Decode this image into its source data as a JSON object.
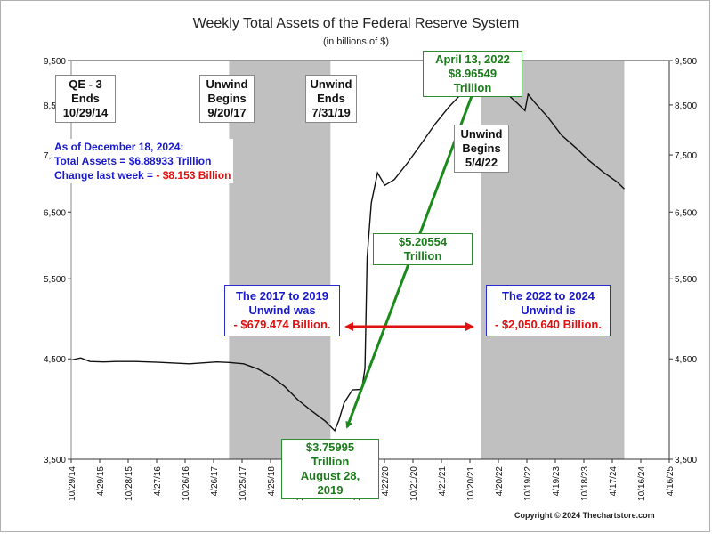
{
  "chart_data": {
    "type": "line",
    "title": "Weekly Total Assets of the Federal Reserve System",
    "subtitle": "(in billions of $)",
    "y_scale": "log",
    "ylim": [
      3500,
      9500
    ],
    "y_ticks": [
      3500,
      4500,
      5500,
      6500,
      7500,
      8500,
      9500
    ],
    "y_tick_labels": [
      "3,500",
      "4,500",
      "5,500",
      "6,500",
      "7,500",
      "8,500",
      "9,500"
    ],
    "x_range": [
      "2014-10-29",
      "2025-10-15"
    ],
    "x_tick_labels": [
      "10/29/14",
      "4/29/15",
      "10/28/15",
      "4/27/16",
      "10/26/16",
      "4/26/17",
      "10/25/17",
      "4/25/18",
      "10/24/18",
      "4/24/19",
      "10/23/19",
      "4/22/20",
      "10/21/20",
      "4/21/21",
      "10/20/21",
      "4/20/22",
      "10/19/22",
      "4/19/23",
      "10/18/23",
      "4/17/24",
      "10/16/24",
      "4/16/25"
    ],
    "grid": false,
    "line_color": "#111111",
    "shaded_periods": [
      {
        "start": "2017-09-20",
        "end": "2019-07-31"
      },
      {
        "start": "2022-05-04",
        "end": "2024-12-18"
      }
    ],
    "shade_color": "#c0c0c0",
    "series": [
      {
        "points": [
          [
            "2014-10-29",
            4487
          ],
          [
            "2014-12-31",
            4510
          ],
          [
            "2015-03-04",
            4470
          ],
          [
            "2015-06-03",
            4465
          ],
          [
            "2015-09-02",
            4470
          ],
          [
            "2015-12-30",
            4470
          ],
          [
            "2016-06-01",
            4462
          ],
          [
            "2016-12-28",
            4445
          ],
          [
            "2017-06-28",
            4465
          ],
          [
            "2017-09-20",
            4460
          ],
          [
            "2017-12-27",
            4445
          ],
          [
            "2018-03-28",
            4390
          ],
          [
            "2018-06-27",
            4310
          ],
          [
            "2018-09-26",
            4200
          ],
          [
            "2018-12-26",
            4060
          ],
          [
            "2019-03-27",
            3950
          ],
          [
            "2019-06-26",
            3850
          ],
          [
            "2019-07-31",
            3800
          ],
          [
            "2019-08-28",
            3760
          ],
          [
            "2019-09-25",
            3860
          ],
          [
            "2019-10-30",
            4030
          ],
          [
            "2019-12-25",
            4165
          ],
          [
            "2020-02-26",
            4170
          ],
          [
            "2020-03-18",
            4400
          ],
          [
            "2020-04-01",
            5800
          ],
          [
            "2020-04-29",
            6650
          ],
          [
            "2020-06-10",
            7170
          ],
          [
            "2020-07-29",
            6950
          ],
          [
            "2020-09-30",
            7050
          ],
          [
            "2020-12-30",
            7360
          ],
          [
            "2021-03-31",
            7720
          ],
          [
            "2021-06-30",
            8100
          ],
          [
            "2021-09-29",
            8450
          ],
          [
            "2021-12-29",
            8760
          ],
          [
            "2022-03-02",
            8900
          ],
          [
            "2022-04-13",
            8965
          ],
          [
            "2022-06-29",
            8930
          ],
          [
            "2022-09-28",
            8820
          ],
          [
            "2022-12-28",
            8550
          ],
          [
            "2023-02-22",
            8380
          ],
          [
            "2023-03-15",
            8730
          ],
          [
            "2023-04-26",
            8560
          ],
          [
            "2023-07-26",
            8240
          ],
          [
            "2023-10-25",
            7880
          ],
          [
            "2024-01-31",
            7630
          ],
          [
            "2024-04-24",
            7400
          ],
          [
            "2024-07-31",
            7180
          ],
          [
            "2024-10-30",
            7010
          ],
          [
            "2024-12-18",
            6889
          ]
        ]
      }
    ],
    "annotations": {
      "qe3": {
        "lines": [
          "QE - 3",
          "Ends",
          "10/29/14"
        ]
      },
      "unwind1_begins": {
        "lines": [
          "Unwind",
          "Begins",
          "9/20/17"
        ]
      },
      "unwind1_ends": {
        "lines": [
          "Unwind",
          "Ends",
          "7/31/19"
        ]
      },
      "unwind2_begins": {
        "lines": [
          "Unwind",
          "Begins",
          "5/4/22"
        ]
      },
      "peak": {
        "date": "2022-04-13",
        "value": 8965.49,
        "lines": [
          "April 13, 2022",
          "$8.96549 Trillion"
        ]
      },
      "trough": {
        "date": "2019-08-28",
        "value": 3759.95,
        "lines": [
          "$3.75995 Trillion",
          "August 28, 2019"
        ]
      },
      "increase": {
        "label": "$5.20554 Trillion",
        "value": 5205.54
      },
      "unwind1_amount": {
        "lines": [
          "The 2017 to 2019",
          "Unwind was"
        ],
        "amount": "- $679.474 Billion."
      },
      "unwind2_amount": {
        "lines": [
          "The 2022 to 2024",
          "Unwind is"
        ],
        "amount": "- $2,050.640 Billion."
      },
      "status": {
        "as_of": "As of December 18, 2024:",
        "total_label": "Total Assets = ",
        "total_value": "$6.88933 Trillion",
        "change_label": "Change last week = ",
        "change_value": "- $8.153 Billion"
      }
    },
    "colors": {
      "green_arrow": "#1a8a1a",
      "red_arrow": "#e01010",
      "blue_text": "#1a1ac8",
      "red_text": "#e01010"
    }
  },
  "copyright": "Copyright © 2024 Thechartstore.com"
}
